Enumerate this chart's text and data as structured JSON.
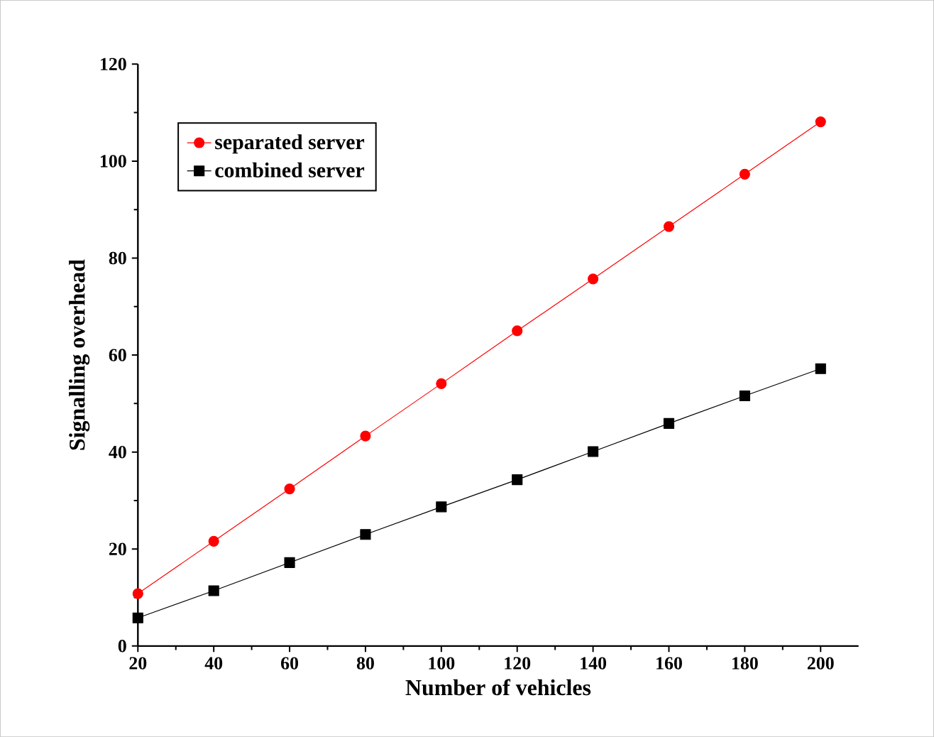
{
  "chart_data": {
    "type": "line",
    "xlabel": "Number of vehicles",
    "ylabel": "Signalling overhead",
    "x": [
      20,
      40,
      60,
      80,
      100,
      120,
      140,
      160,
      180,
      200
    ],
    "series": [
      {
        "name": "separated server",
        "color": "#ff0000",
        "marker": "circle",
        "values": [
          10.8,
          21.6,
          32.4,
          43.3,
          54.1,
          65.0,
          75.7,
          86.5,
          97.3,
          108.1
        ]
      },
      {
        "name": "combined server",
        "color": "#000000",
        "marker": "square",
        "values": [
          5.8,
          11.4,
          17.2,
          23.0,
          28.7,
          34.3,
          40.1,
          45.9,
          51.6,
          57.2
        ]
      }
    ],
    "xlim": [
      20,
      210
    ],
    "xticks": [
      20,
      40,
      60,
      80,
      100,
      120,
      140,
      160,
      180,
      200
    ],
    "ylim": [
      0,
      120
    ],
    "yticks": [
      0,
      20,
      40,
      60,
      80,
      100,
      120
    ],
    "legend": "top left",
    "grid": false,
    "line_style": "solid"
  }
}
